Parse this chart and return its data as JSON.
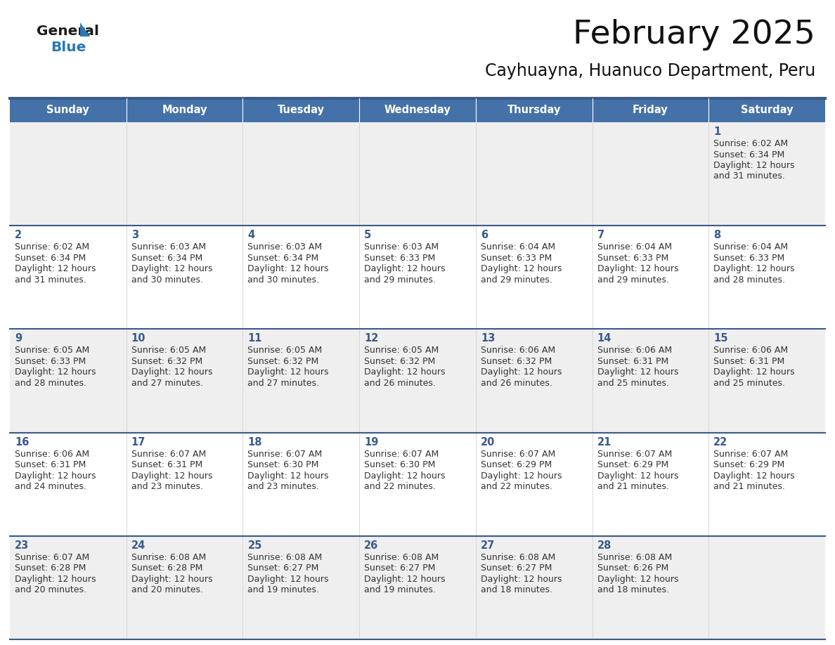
{
  "title": "February 2025",
  "subtitle": "Cayhuayna, Huanuco Department, Peru",
  "header_color": "#4472a8",
  "header_text_color": "#ffffff",
  "cell_bg_even": "#efefef",
  "cell_bg_odd": "#ffffff",
  "day_num_color": "#3a5a8a",
  "text_color": "#333333",
  "line_color": "#3a5a8a",
  "day_headers": [
    "Sunday",
    "Monday",
    "Tuesday",
    "Wednesday",
    "Thursday",
    "Friday",
    "Saturday"
  ],
  "calendar_data": [
    [
      null,
      null,
      null,
      null,
      null,
      null,
      {
        "day": 1,
        "sunrise": "6:02 AM",
        "sunset": "6:34 PM",
        "daylight1": "12 hours",
        "daylight2": "and 31 minutes."
      }
    ],
    [
      {
        "day": 2,
        "sunrise": "6:02 AM",
        "sunset": "6:34 PM",
        "daylight1": "12 hours",
        "daylight2": "and 31 minutes."
      },
      {
        "day": 3,
        "sunrise": "6:03 AM",
        "sunset": "6:34 PM",
        "daylight1": "12 hours",
        "daylight2": "and 30 minutes."
      },
      {
        "day": 4,
        "sunrise": "6:03 AM",
        "sunset": "6:34 PM",
        "daylight1": "12 hours",
        "daylight2": "and 30 minutes."
      },
      {
        "day": 5,
        "sunrise": "6:03 AM",
        "sunset": "6:33 PM",
        "daylight1": "12 hours",
        "daylight2": "and 29 minutes."
      },
      {
        "day": 6,
        "sunrise": "6:04 AM",
        "sunset": "6:33 PM",
        "daylight1": "12 hours",
        "daylight2": "and 29 minutes."
      },
      {
        "day": 7,
        "sunrise": "6:04 AM",
        "sunset": "6:33 PM",
        "daylight1": "12 hours",
        "daylight2": "and 29 minutes."
      },
      {
        "day": 8,
        "sunrise": "6:04 AM",
        "sunset": "6:33 PM",
        "daylight1": "12 hours",
        "daylight2": "and 28 minutes."
      }
    ],
    [
      {
        "day": 9,
        "sunrise": "6:05 AM",
        "sunset": "6:33 PM",
        "daylight1": "12 hours",
        "daylight2": "and 28 minutes."
      },
      {
        "day": 10,
        "sunrise": "6:05 AM",
        "sunset": "6:32 PM",
        "daylight1": "12 hours",
        "daylight2": "and 27 minutes."
      },
      {
        "day": 11,
        "sunrise": "6:05 AM",
        "sunset": "6:32 PM",
        "daylight1": "12 hours",
        "daylight2": "and 27 minutes."
      },
      {
        "day": 12,
        "sunrise": "6:05 AM",
        "sunset": "6:32 PM",
        "daylight1": "12 hours",
        "daylight2": "and 26 minutes."
      },
      {
        "day": 13,
        "sunrise": "6:06 AM",
        "sunset": "6:32 PM",
        "daylight1": "12 hours",
        "daylight2": "and 26 minutes."
      },
      {
        "day": 14,
        "sunrise": "6:06 AM",
        "sunset": "6:31 PM",
        "daylight1": "12 hours",
        "daylight2": "and 25 minutes."
      },
      {
        "day": 15,
        "sunrise": "6:06 AM",
        "sunset": "6:31 PM",
        "daylight1": "12 hours",
        "daylight2": "and 25 minutes."
      }
    ],
    [
      {
        "day": 16,
        "sunrise": "6:06 AM",
        "sunset": "6:31 PM",
        "daylight1": "12 hours",
        "daylight2": "and 24 minutes."
      },
      {
        "day": 17,
        "sunrise": "6:07 AM",
        "sunset": "6:31 PM",
        "daylight1": "12 hours",
        "daylight2": "and 23 minutes."
      },
      {
        "day": 18,
        "sunrise": "6:07 AM",
        "sunset": "6:30 PM",
        "daylight1": "12 hours",
        "daylight2": "and 23 minutes."
      },
      {
        "day": 19,
        "sunrise": "6:07 AM",
        "sunset": "6:30 PM",
        "daylight1": "12 hours",
        "daylight2": "and 22 minutes."
      },
      {
        "day": 20,
        "sunrise": "6:07 AM",
        "sunset": "6:29 PM",
        "daylight1": "12 hours",
        "daylight2": "and 22 minutes."
      },
      {
        "day": 21,
        "sunrise": "6:07 AM",
        "sunset": "6:29 PM",
        "daylight1": "12 hours",
        "daylight2": "and 21 minutes."
      },
      {
        "day": 22,
        "sunrise": "6:07 AM",
        "sunset": "6:29 PM",
        "daylight1": "12 hours",
        "daylight2": "and 21 minutes."
      }
    ],
    [
      {
        "day": 23,
        "sunrise": "6:07 AM",
        "sunset": "6:28 PM",
        "daylight1": "12 hours",
        "daylight2": "and 20 minutes."
      },
      {
        "day": 24,
        "sunrise": "6:08 AM",
        "sunset": "6:28 PM",
        "daylight1": "12 hours",
        "daylight2": "and 20 minutes."
      },
      {
        "day": 25,
        "sunrise": "6:08 AM",
        "sunset": "6:27 PM",
        "daylight1": "12 hours",
        "daylight2": "and 19 minutes."
      },
      {
        "day": 26,
        "sunrise": "6:08 AM",
        "sunset": "6:27 PM",
        "daylight1": "12 hours",
        "daylight2": "and 19 minutes."
      },
      {
        "day": 27,
        "sunrise": "6:08 AM",
        "sunset": "6:27 PM",
        "daylight1": "12 hours",
        "daylight2": "and 18 minutes."
      },
      {
        "day": 28,
        "sunrise": "6:08 AM",
        "sunset": "6:26 PM",
        "daylight1": "12 hours",
        "daylight2": "and 18 minutes."
      },
      null
    ]
  ],
  "logo_general_color": "#1a1a1a",
  "logo_blue_color": "#2979b5",
  "logo_triangle_color": "#2979b5"
}
